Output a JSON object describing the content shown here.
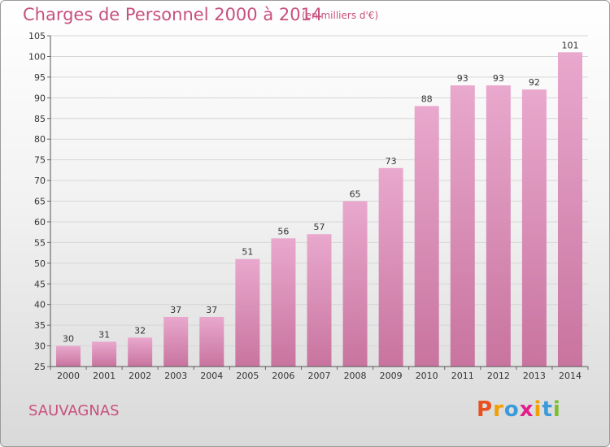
{
  "title": "Charges de Personnel 2000 à 2014",
  "subtitle": "(en milliers d'€)",
  "commune": "SAUVAGNAS",
  "logo": {
    "letters": [
      "P",
      "r",
      "o",
      "x",
      "i",
      "t",
      "i"
    ],
    "colors": [
      "#e8501f",
      "#f0a000",
      "#3b9ad9",
      "#e31d8c",
      "#f0a000",
      "#3b9ad9",
      "#7bbf2a"
    ]
  },
  "colors": {
    "bar_light": "#e9a8cd",
    "bar_dark": "#c8749f",
    "title": "#c8507e"
  },
  "chart_data": {
    "type": "bar",
    "title": "Charges de Personnel 2000 à 2014",
    "subtitle": "(en milliers d'€)",
    "categories": [
      "2000",
      "2001",
      "2002",
      "2003",
      "2004",
      "2005",
      "2006",
      "2007",
      "2008",
      "2009",
      "2010",
      "2011",
      "2012",
      "2013",
      "2014"
    ],
    "values": [
      30,
      31,
      32,
      37,
      37,
      51,
      56,
      57,
      65,
      73,
      88,
      93,
      93,
      92,
      101
    ],
    "ylim": [
      25,
      105
    ],
    "yticks": [
      25,
      30,
      35,
      40,
      45,
      50,
      55,
      60,
      65,
      70,
      75,
      80,
      85,
      90,
      95,
      100,
      105
    ],
    "grid": true,
    "legend": "none"
  }
}
